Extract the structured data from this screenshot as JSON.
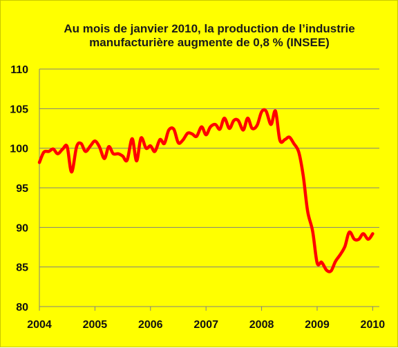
{
  "chart_data": {
    "type": "line",
    "title_lines": [
      "Au mois de janvier 2010, la production de l’industrie",
      "manufacturière augmente de 0,8 % (INSEE)"
    ],
    "xlabel": "",
    "ylabel": "",
    "ylim": [
      80,
      110
    ],
    "y_ticks": [
      80,
      85,
      90,
      95,
      100,
      105,
      110
    ],
    "xlim": [
      2004,
      2010.12
    ],
    "x_ticks": [
      2004,
      2005,
      2006,
      2007,
      2008,
      2009,
      2010
    ],
    "grid": true,
    "legend": "none",
    "line_color": "#ff0000",
    "series": [
      {
        "x": [
          2004.0,
          2004.08,
          2004.17,
          2004.25,
          2004.33,
          2004.42,
          2004.5,
          2004.58,
          2004.67,
          2004.75,
          2004.83,
          2004.92,
          2005.0,
          2005.08,
          2005.17,
          2005.25,
          2005.33,
          2005.42,
          2005.5,
          2005.58,
          2005.67,
          2005.75,
          2005.83,
          2005.92,
          2006.0,
          2006.08,
          2006.17,
          2006.25,
          2006.33,
          2006.42,
          2006.5,
          2006.58,
          2006.67,
          2006.75,
          2006.83,
          2006.92,
          2007.0,
          2007.08,
          2007.17,
          2007.25,
          2007.33,
          2007.42,
          2007.5,
          2007.58,
          2007.67,
          2007.75,
          2007.83,
          2007.92,
          2008.0,
          2008.08,
          2008.17,
          2008.25,
          2008.33,
          2008.42,
          2008.5,
          2008.58,
          2008.67,
          2008.75,
          2008.83,
          2008.92,
          2009.0,
          2009.08,
          2009.17,
          2009.25,
          2009.33,
          2009.42,
          2009.5,
          2009.58,
          2009.67,
          2009.75,
          2009.83,
          2009.92,
          2010.0
        ],
        "values": [
          98.2,
          99.5,
          99.6,
          99.9,
          99.3,
          99.9,
          100.2,
          97.0,
          100.2,
          100.6,
          99.6,
          100.3,
          100.9,
          100.2,
          98.7,
          100.2,
          99.3,
          99.3,
          99.0,
          98.5,
          101.2,
          98.4,
          101.3,
          100.0,
          100.3,
          99.6,
          101.1,
          100.6,
          102.3,
          102.4,
          100.7,
          101.0,
          101.9,
          101.8,
          101.5,
          102.7,
          101.7,
          102.7,
          103.0,
          102.4,
          103.8,
          102.5,
          103.5,
          103.5,
          102.3,
          103.8,
          102.5,
          102.9,
          104.6,
          104.7,
          103.0,
          104.7,
          101.0,
          101.1,
          101.4,
          100.6,
          99.5,
          96.5,
          92.0,
          89.5,
          85.5,
          85.6,
          84.6,
          84.5,
          85.7,
          86.6,
          87.6,
          89.4,
          88.5,
          88.5,
          89.2,
          88.5,
          89.2
        ]
      }
    ]
  }
}
